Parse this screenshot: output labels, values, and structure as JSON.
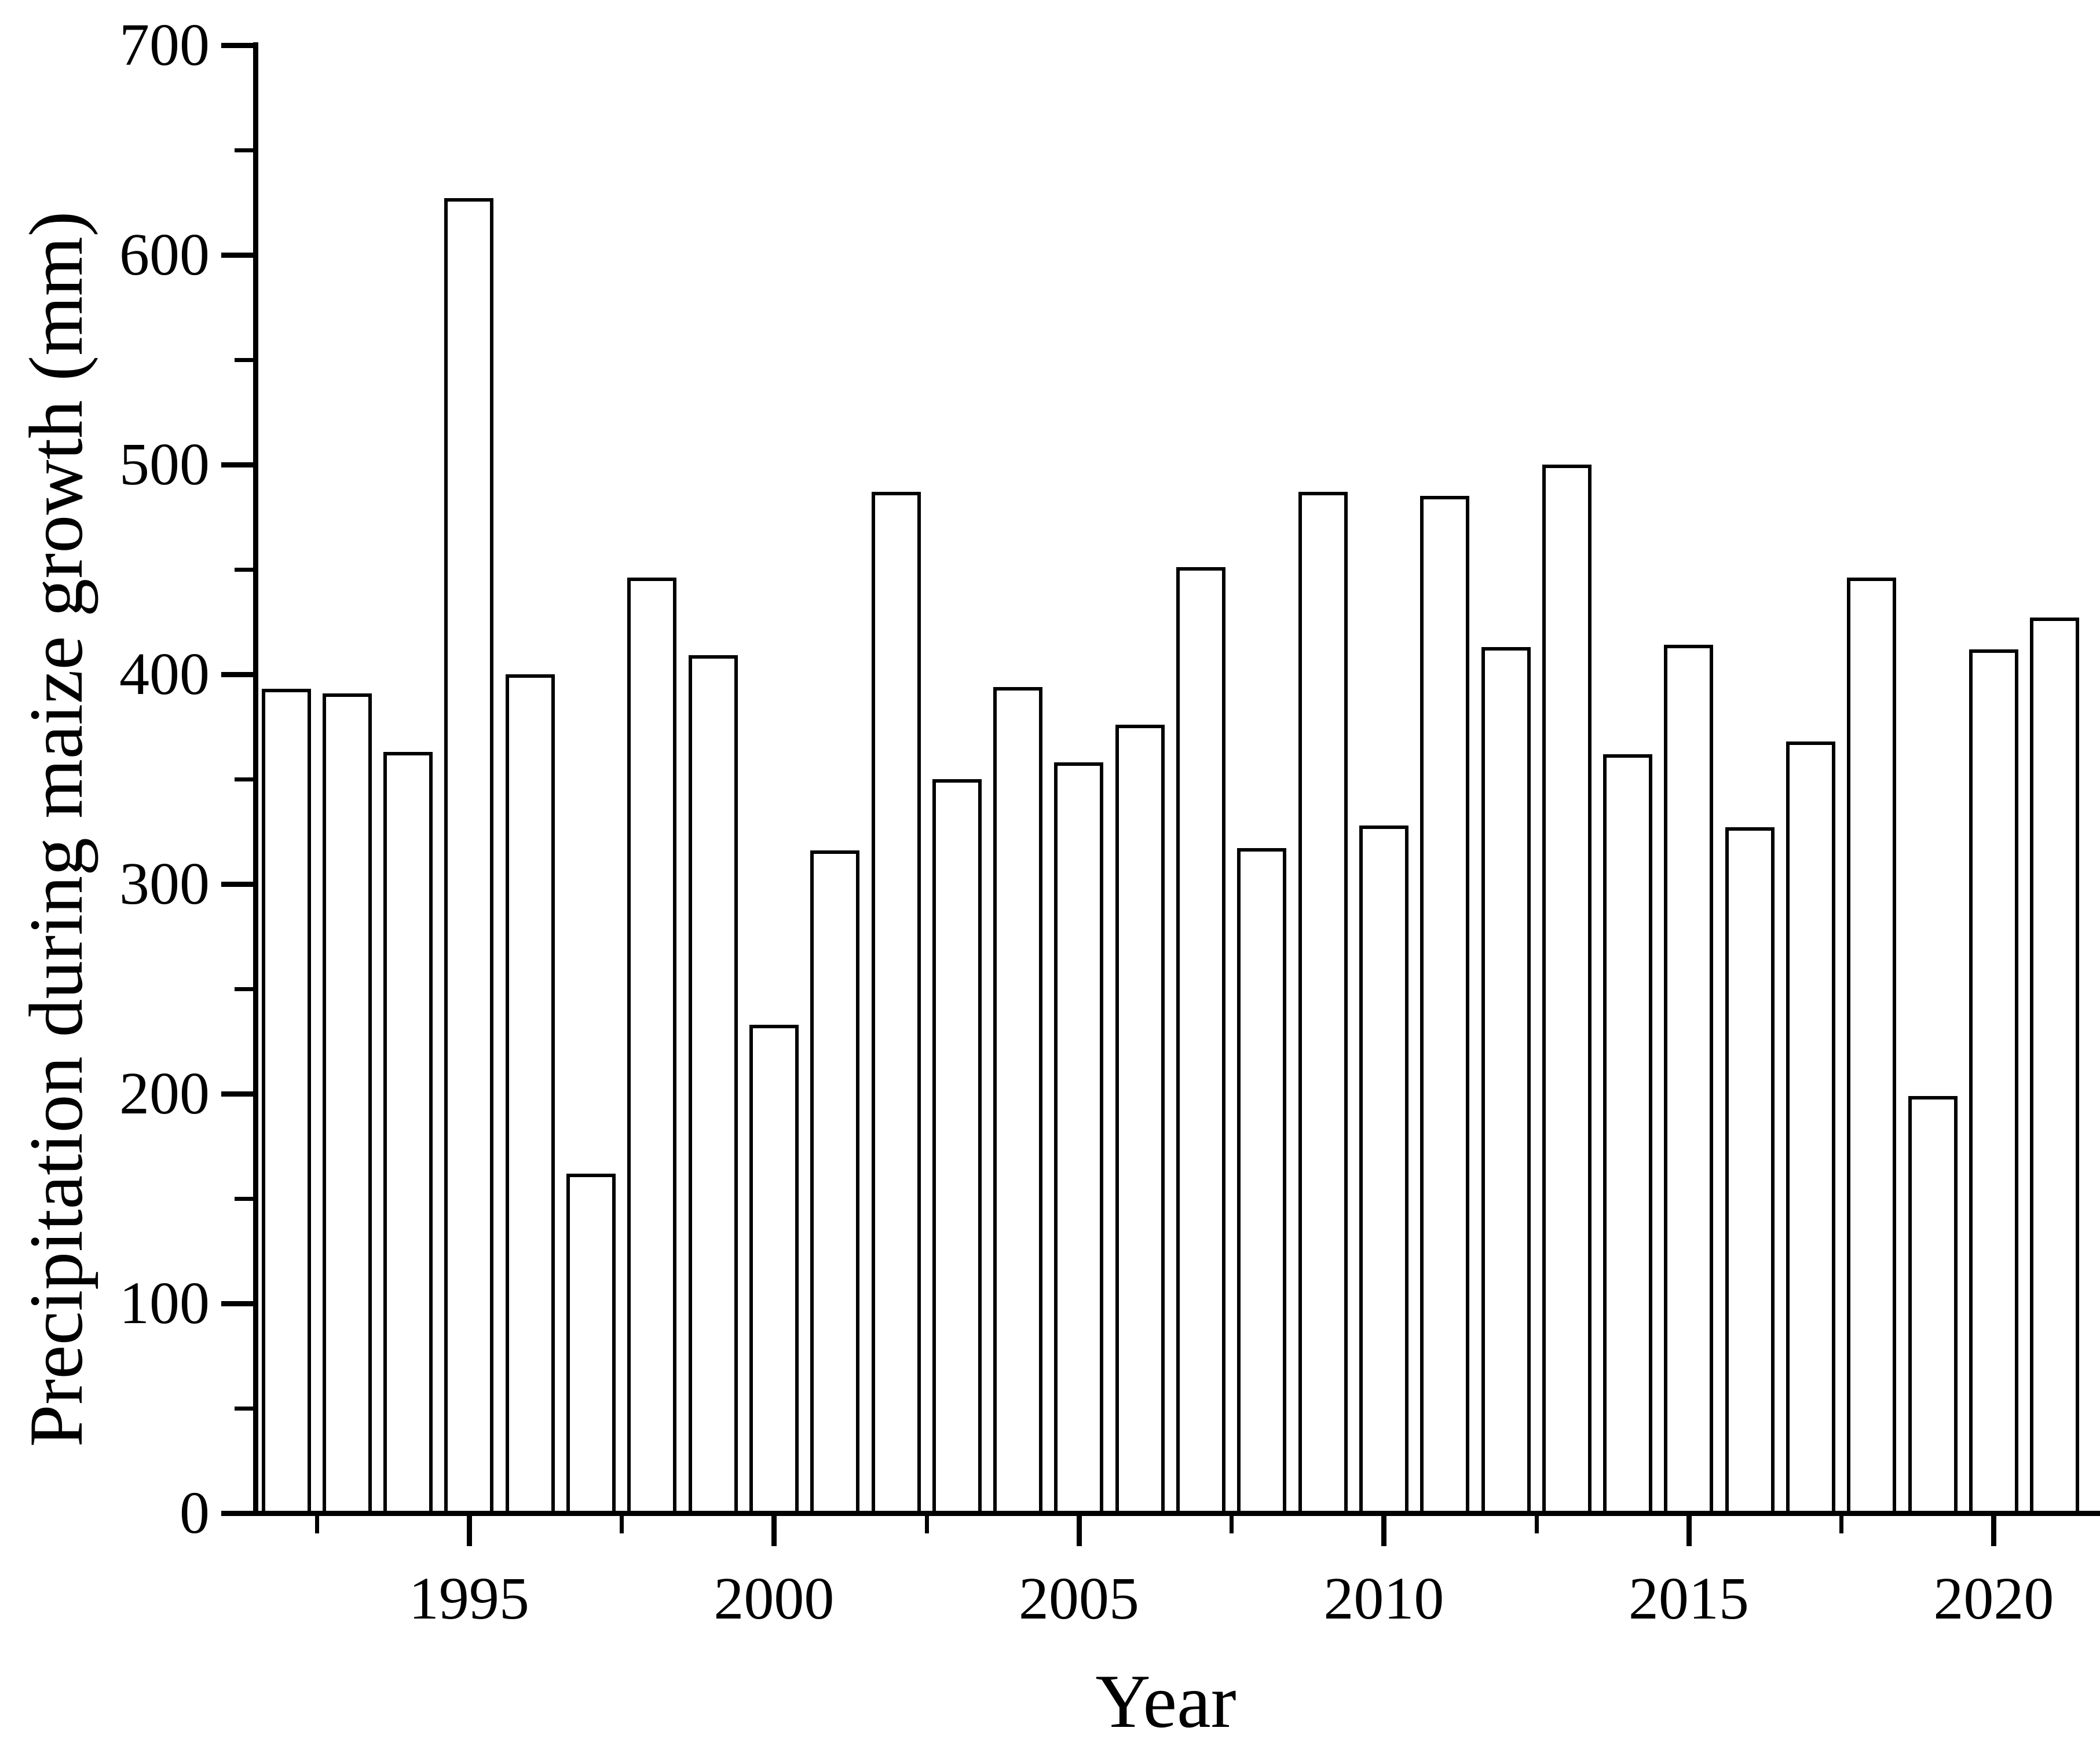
{
  "figure": {
    "background_color": "#ffffff",
    "axis_color": "#000000"
  },
  "chart_data": {
    "type": "bar",
    "title": "",
    "xlabel": "Year",
    "ylabel": "Precipitation during maize growth (mm)",
    "categories": [
      1992,
      1993,
      1994,
      1995,
      1996,
      1997,
      1998,
      1999,
      2000,
      2001,
      2002,
      2003,
      2004,
      2005,
      2006,
      2007,
      2008,
      2009,
      2010,
      2011,
      2012,
      2013,
      2014,
      2015,
      2016,
      2017,
      2018,
      2019,
      2020,
      2021
    ],
    "values": [
      393,
      391,
      363,
      627,
      400,
      162,
      446,
      409,
      233,
      316,
      487,
      350,
      394,
      358,
      376,
      451,
      317,
      487,
      328,
      485,
      413,
      500,
      362,
      414,
      327,
      368,
      446,
      199,
      412,
      427
    ],
    "ylim": [
      0,
      700
    ],
    "yticks_major": [
      0,
      100,
      200,
      300,
      400,
      500,
      600,
      700
    ],
    "yticks_minor": [
      50,
      150,
      250,
      350,
      450,
      550,
      650
    ],
    "xticks_major": [
      1995,
      2000,
      2005,
      2010,
      2015,
      2020
    ],
    "xticks_minor": [
      1992.5,
      1997.5,
      2002.5,
      2007.5,
      2012.5,
      2017.5
    ],
    "bar_fill": "#ffffff",
    "bar_stroke": "#000000",
    "grid": "off",
    "legend": "none"
  }
}
